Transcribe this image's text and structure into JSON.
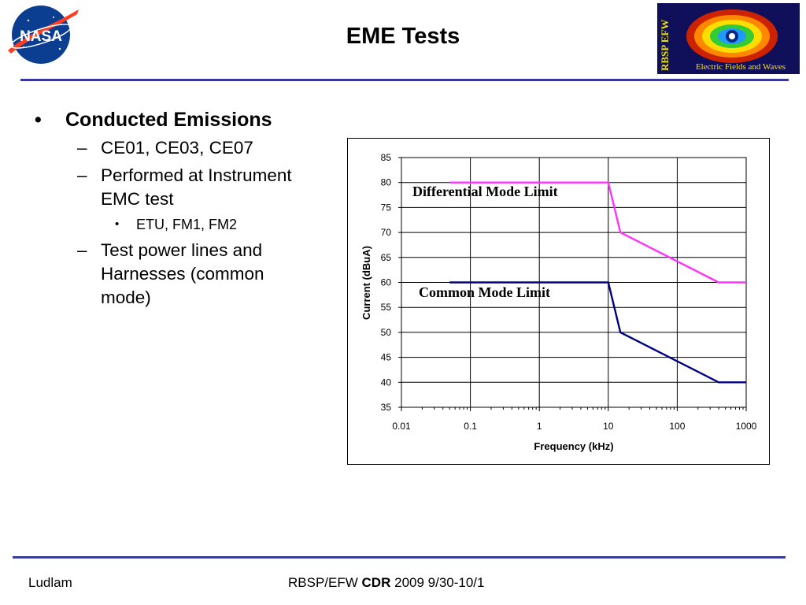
{
  "slide": {
    "title": "EME Tests"
  },
  "logos": {
    "nasa_wordmark": "NASA",
    "rbsp_vertical": "RBSP EFW",
    "rbsp_caption": "Electric Fields and Waves"
  },
  "bullets": {
    "heading": "Conducted Emissions",
    "item1": "CE01, CE03, CE07",
    "item2": "Performed at Instrument EMC test",
    "sub1": "ETU, FM1, FM2",
    "item3": "Test power lines and Harnesses (common mode)"
  },
  "footer": {
    "author": "Ludlam",
    "project": "RBSP/EFW",
    "review": "CDR",
    "dates": "2009 9/30-10/1"
  },
  "chart_data": {
    "type": "line",
    "x_scale": "log",
    "xlabel": "Frequency (kHz)",
    "ylabel": "Current (dBuA)",
    "xlim": [
      0.01,
      1000
    ],
    "ylim": [
      35,
      85
    ],
    "x_ticks": [
      "0.01",
      "0.1",
      "1",
      "10",
      "100",
      "1000"
    ],
    "y_ticks": [
      "35",
      "40",
      "45",
      "50",
      "55",
      "60",
      "65",
      "70",
      "75",
      "80",
      "85"
    ],
    "grid": true,
    "series": [
      {
        "name": "Differential Mode Limit",
        "color": "#ff33ff",
        "points": [
          [
            0.05,
            80
          ],
          [
            10,
            80
          ],
          [
            15,
            70
          ],
          [
            400,
            60
          ],
          [
            1000,
            60
          ]
        ]
      },
      {
        "name": "Common Mode Limit",
        "color": "#000080",
        "points": [
          [
            0.05,
            60
          ],
          [
            10,
            60
          ],
          [
            15,
            50
          ],
          [
            400,
            40
          ],
          [
            1000,
            40
          ]
        ]
      }
    ]
  }
}
